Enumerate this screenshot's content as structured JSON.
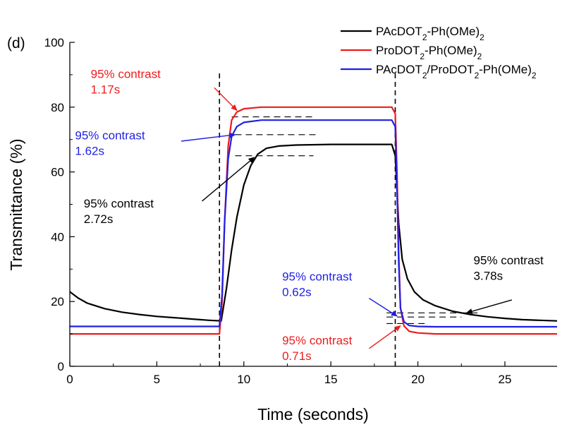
{
  "chart_data": {
    "type": "line",
    "panel_label": "(d)",
    "xlabel": "Time (seconds)",
    "ylabel": "Transmittance (%)",
    "xlim": [
      0,
      28
    ],
    "ylim": [
      0,
      100
    ],
    "xticks": [
      0,
      5,
      10,
      15,
      20,
      25
    ],
    "yticks": [
      0,
      20,
      40,
      60,
      80,
      100
    ],
    "grid": false,
    "legend_position": "top-right",
    "series": [
      {
        "name": "PAcDOT",
        "name_sub": "2",
        "name_tail": "-Ph(OMe)",
        "name_sub2": "2",
        "color": "#000000",
        "x": [
          0,
          0.5,
          1,
          2,
          3,
          4,
          5,
          6,
          7,
          8,
          8.7,
          9.0,
          9.3,
          9.6,
          10.0,
          10.4,
          10.8,
          11.3,
          12,
          13,
          15,
          17,
          18.5,
          18.7,
          18.9,
          19.1,
          19.4,
          19.8,
          20.3,
          21,
          22,
          23,
          24,
          25,
          26,
          27,
          28
        ],
        "y": [
          23,
          21,
          19.5,
          17.8,
          16.7,
          16,
          15.4,
          15,
          14.6,
          14.2,
          14,
          24,
          36,
          46,
          56,
          62,
          65.5,
          67.3,
          68,
          68.3,
          68.5,
          68.5,
          68.5,
          65,
          44,
          33,
          27,
          23,
          20.5,
          18.7,
          17,
          16,
          15.3,
          14.8,
          14.4,
          14.2,
          14
        ]
      },
      {
        "name": "ProDOT",
        "name_sub": "2",
        "name_tail": "-Ph(OMe)",
        "name_sub2": "2",
        "color": "#ee1c1c",
        "x": [
          0,
          8.6,
          8.75,
          8.9,
          9.1,
          9.3,
          9.6,
          10,
          11,
          13,
          18.5,
          18.7,
          18.8,
          18.9,
          19.0,
          19.2,
          19.5,
          20,
          21,
          28
        ],
        "y": [
          10,
          10,
          20,
          45,
          68,
          76,
          78.5,
          79.5,
          80,
          80,
          80,
          78,
          60,
          35,
          18,
          12.5,
          10.8,
          10.3,
          10,
          10
        ]
      },
      {
        "name": "PAcDOT",
        "name_sub": "2",
        "name_tail": "/ProDOT",
        "name_sub2": "2",
        "name_tail2": "-Ph(OMe)",
        "name_sub3": "2",
        "color": "#1f1fe6",
        "x": [
          0,
          8.6,
          8.75,
          8.9,
          9.1,
          9.3,
          9.6,
          10,
          11,
          13,
          18.5,
          18.7,
          18.8,
          18.9,
          19.0,
          19.2,
          19.5,
          20,
          21,
          28
        ],
        "y": [
          12.3,
          12.3,
          22,
          45,
          64,
          71,
          74,
          75.3,
          76,
          76,
          76,
          74,
          55,
          32,
          18,
          13.8,
          12.6,
          12.3,
          12.2,
          12.2
        ]
      }
    ],
    "vertical_markers": [
      8.6,
      18.7
    ],
    "horizontal_guides": [
      {
        "y": 77,
        "x": [
          9.3,
          14.0
        ],
        "color": "#000000"
      },
      {
        "y": 71.5,
        "x": [
          9.5,
          14.2
        ],
        "color": "#000000"
      },
      {
        "y": 65,
        "x": [
          9.5,
          14.0
        ],
        "color": "#000000"
      },
      {
        "y": 16.5,
        "x": [
          18.2,
          23.5
        ],
        "color": "#000000"
      },
      {
        "y": 15.2,
        "x": [
          18.2,
          22.5
        ],
        "color": "#000000"
      },
      {
        "y": 13.2,
        "x": [
          18.2,
          20.5
        ],
        "color": "#000000"
      }
    ],
    "annotations": [
      {
        "line1": "95% contrast",
        "line2": "1.17s",
        "color": "#ee1c1c",
        "text_at": [
          1.2,
          89
        ],
        "arrow_from": [
          8.3,
          86
        ],
        "arrow_to": [
          9.6,
          79
        ]
      },
      {
        "line1": "95% contrast",
        "line2": "1.62s",
        "color": "#1f1fe6",
        "text_at": [
          0.3,
          70
        ],
        "arrow_from": [
          6.4,
          69.5
        ],
        "arrow_to": [
          9.5,
          71.5
        ]
      },
      {
        "line1": "95% contrast",
        "line2": "2.72s",
        "color": "#000000",
        "text_at": [
          0.8,
          49
        ],
        "arrow_from": [
          7.6,
          51
        ],
        "arrow_to": [
          10.6,
          64.5
        ]
      },
      {
        "line1": "95% contrast",
        "line2": "0.62s",
        "color": "#1f1fe6",
        "text_at": [
          12.2,
          26.5
        ],
        "arrow_from": [
          17.2,
          21
        ],
        "arrow_to": [
          18.8,
          15.5
        ]
      },
      {
        "line1": "95% contrast",
        "line2": "0.71s",
        "color": "#ee1c1c",
        "text_at": [
          12.2,
          6.8
        ],
        "arrow_from": [
          17.2,
          5.5
        ],
        "arrow_to": [
          19.0,
          12.5
        ]
      },
      {
        "line1": "95% contrast",
        "line2": "3.78s",
        "color": "#000000",
        "text_at": [
          23.2,
          31.5
        ],
        "arrow_from": [
          25.4,
          20.5
        ],
        "arrow_to": [
          22.8,
          16.5
        ]
      }
    ]
  }
}
